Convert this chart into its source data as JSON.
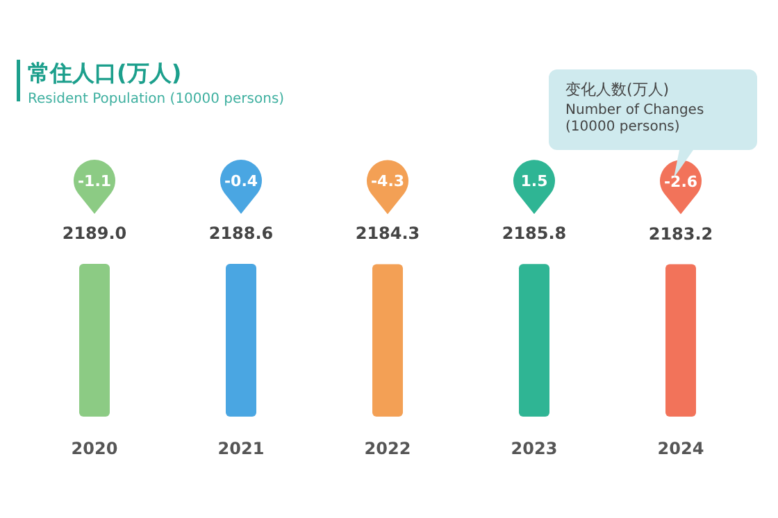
{
  "chart_data": {
    "type": "bar",
    "title": "常住人口(万人)",
    "subtitle": "Resident Population (10000 persons)",
    "categories": [
      "2020",
      "2021",
      "2022",
      "2023",
      "2024"
    ],
    "values": [
      2189.0,
      2188.6,
      2184.3,
      2185.8,
      2183.2
    ],
    "value_labels": [
      "2189.0",
      "2188.6",
      "2184.3",
      "2185.8",
      "2183.2"
    ],
    "colors": [
      "#8ccb84",
      "#4aa6e2",
      "#f3a055",
      "#2fb594",
      "#f2735a"
    ],
    "annotations": [
      "变化人数(万人)",
      "Number of Changes (10000 persons)",
      "-1.1",
      "-0.4",
      "-4.3",
      "1.5",
      "-2.6"
    ]
  }
}
